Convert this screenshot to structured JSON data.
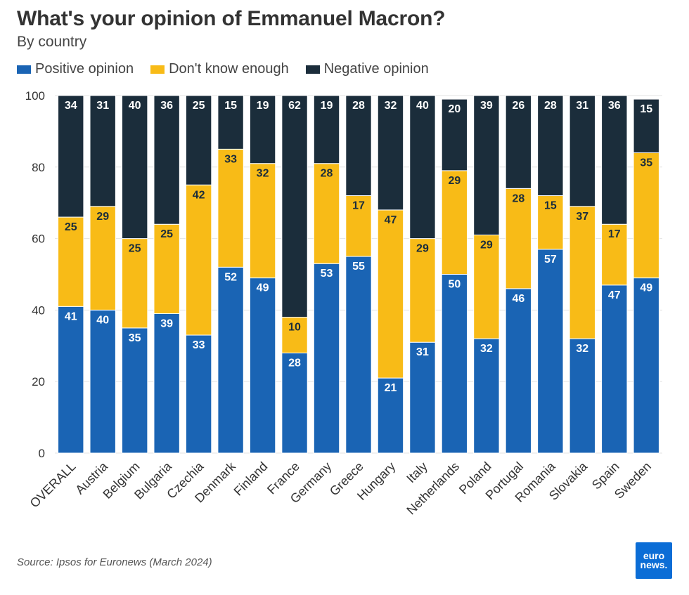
{
  "title": "What's your opinion of Emmanuel Macron?",
  "subtitle": "By country",
  "legend": [
    {
      "label": "Positive opinion",
      "color": "#1a64b4"
    },
    {
      "label": "Don't know enough",
      "color": "#f8bb17"
    },
    {
      "label": "Negative opinion",
      "color": "#1b2d3b"
    }
  ],
  "source": "Source: Ipsos for Euronews (March 2024)",
  "logo": {
    "line1": "euro",
    "line2": "news."
  },
  "chart_data": {
    "type": "bar",
    "stacked": true,
    "categories": [
      "OVERALL",
      "Austria",
      "Belgium",
      "Bulgaria",
      "Czechia",
      "Denmark",
      "Finland",
      "France",
      "Germany",
      "Greece",
      "Hungary",
      "Italy",
      "Netherlands",
      "Poland",
      "Portugal",
      "Romania",
      "Slovakia",
      "Spain",
      "Sweden"
    ],
    "series": [
      {
        "name": "Positive opinion",
        "color": "#1a64b4",
        "label_color": "#ffffff",
        "values": [
          41,
          40,
          35,
          39,
          33,
          52,
          49,
          28,
          53,
          55,
          21,
          31,
          50,
          32,
          46,
          57,
          32,
          47,
          49
        ]
      },
      {
        "name": "Don't know enough",
        "color": "#f8bb17",
        "label_color": "#1b2d3b",
        "values": [
          25,
          29,
          25,
          25,
          42,
          33,
          32,
          10,
          28,
          17,
          47,
          29,
          29,
          29,
          28,
          15,
          37,
          17,
          35
        ]
      },
      {
        "name": "Negative opinion",
        "color": "#1b2d3b",
        "label_color": "#ffffff",
        "values": [
          34,
          31,
          40,
          36,
          25,
          15,
          19,
          62,
          19,
          28,
          32,
          40,
          20,
          39,
          26,
          28,
          31,
          36,
          15
        ]
      }
    ],
    "ylim": [
      0,
      100
    ],
    "yticks": [
      0,
      20,
      40,
      60,
      80,
      100
    ],
    "grid": true,
    "legend_position": "top-left",
    "title": "What's your opinion of Emmanuel Macron?",
    "subtitle": "By country",
    "xlabel": "",
    "ylabel": ""
  }
}
